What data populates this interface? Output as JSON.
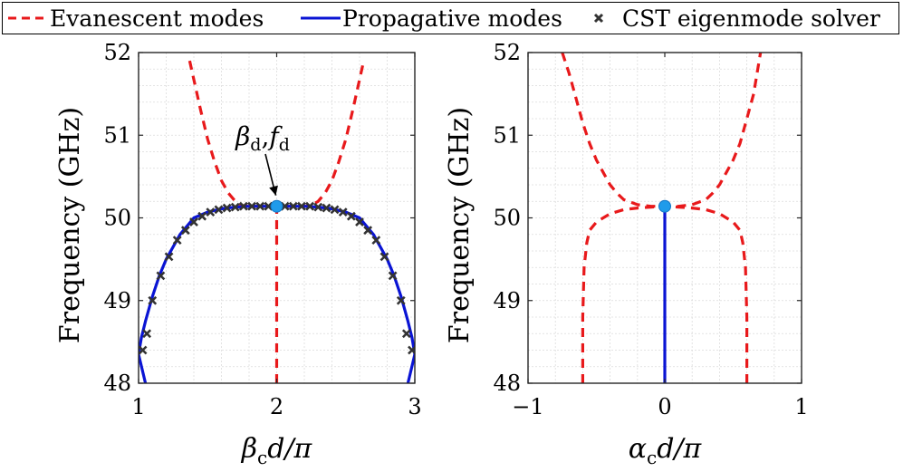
{
  "legend": {
    "items": [
      {
        "label": "Evanescent modes",
        "style": "dashed",
        "color": "#e8191b"
      },
      {
        "label": "Propagative modes",
        "style": "solid",
        "color": "#0a14d4"
      },
      {
        "label": "CST eigenmode solver",
        "style": "marker-x",
        "color": "#333333"
      }
    ],
    "placement": "top, full-width"
  },
  "chart_data": [
    {
      "type": "line",
      "xlim": [
        1,
        3
      ],
      "ylim": [
        48,
        52
      ],
      "xticks": [
        "1",
        "2",
        "3"
      ],
      "yticks": [
        "48",
        "49",
        "50",
        "51",
        "52"
      ],
      "xlabel_parts": {
        "main": "β",
        "sub": "c",
        "rest": "d/π"
      },
      "ylabel": "Frequency (GHz)",
      "grid": true,
      "annotation": {
        "main_a": "β",
        "sub_a": "d",
        "sep": ",",
        "main_b": "f",
        "sub_b": "d",
        "x": 2.0,
        "y": 50.14
      },
      "series": [
        {
          "name": "Evanescent modes",
          "style": "dashed",
          "color": "#e8191b",
          "x": [
            1.37,
            1.41,
            1.45,
            1.5,
            1.55,
            1.6,
            1.65,
            1.7,
            1.75,
            1.8,
            1.9,
            2.0,
            2.1,
            2.2,
            2.25,
            2.3,
            2.35,
            2.4,
            2.45,
            2.5,
            2.55,
            2.59,
            2.63
          ],
          "y": [
            51.9,
            51.6,
            51.3,
            50.95,
            50.68,
            50.45,
            50.3,
            50.2,
            50.15,
            50.14,
            50.14,
            50.14,
            50.14,
            50.14,
            50.15,
            50.2,
            50.3,
            50.45,
            50.68,
            50.95,
            51.3,
            51.6,
            51.9
          ]
        },
        {
          "name": "Evanescent modes (vertical)",
          "style": "dashed",
          "color": "#e8191b",
          "x": [
            2.0,
            2.0
          ],
          "y": [
            48.0,
            50.14
          ]
        },
        {
          "name": "Propagative modes",
          "style": "solid",
          "color": "#0a14d4",
          "x": [
            1.0,
            1.02,
            1.05,
            1.1,
            1.15,
            1.2,
            1.3,
            1.4,
            1.5,
            1.6,
            1.7,
            1.8,
            1.9,
            2.0,
            2.1,
            2.2,
            2.3,
            2.4,
            2.5,
            2.6,
            2.7,
            2.8,
            2.85,
            2.9,
            2.95,
            2.98,
            3.0
          ],
          "y": [
            48.35,
            48.55,
            48.75,
            49.05,
            49.3,
            49.5,
            49.8,
            50.0,
            50.07,
            50.11,
            50.13,
            50.14,
            50.14,
            50.14,
            50.14,
            50.14,
            50.13,
            50.11,
            50.07,
            50.0,
            49.8,
            49.5,
            49.3,
            49.05,
            48.75,
            48.55,
            48.35
          ]
        },
        {
          "name": "Propagative modes (edge)",
          "style": "solid",
          "color": "#0a14d4",
          "x": [
            1.0,
            1.05
          ],
          "y": [
            48.35,
            48.0
          ]
        },
        {
          "name": "Propagative modes (edge)",
          "style": "solid",
          "color": "#0a14d4",
          "x": [
            2.95,
            3.0
          ],
          "y": [
            48.0,
            48.35
          ]
        },
        {
          "name": "CST eigenmode solver",
          "style": "marker-x",
          "color": "#333333",
          "x": [
            1.03,
            1.06,
            1.1,
            1.16,
            1.22,
            1.28,
            1.34,
            1.4,
            1.46,
            1.52,
            1.58,
            1.64,
            1.7,
            1.76,
            1.82,
            1.88,
            1.94,
            2.0,
            2.06,
            2.12,
            2.18,
            2.24,
            2.3,
            2.36,
            2.42,
            2.48,
            2.54,
            2.6,
            2.66,
            2.72,
            2.78,
            2.84,
            2.9,
            2.94,
            2.98
          ],
          "y": [
            48.4,
            48.6,
            49.0,
            49.3,
            49.53,
            49.73,
            49.85,
            49.95,
            50.02,
            50.07,
            50.1,
            50.12,
            50.13,
            50.14,
            50.14,
            50.14,
            50.14,
            50.14,
            50.14,
            50.14,
            50.14,
            50.14,
            50.13,
            50.12,
            50.1,
            50.07,
            50.02,
            49.95,
            49.85,
            49.73,
            49.53,
            49.3,
            49.0,
            48.6,
            48.4
          ]
        },
        {
          "name": "design point",
          "style": "dot",
          "color": "#1f9bea",
          "x": [
            2.0
          ],
          "y": [
            50.14
          ]
        }
      ]
    },
    {
      "type": "line",
      "xlim": [
        -1,
        1
      ],
      "ylim": [
        48,
        52
      ],
      "xticks": [
        "−1",
        "0",
        "1"
      ],
      "yticks": [
        "48",
        "49",
        "50",
        "51",
        "52"
      ],
      "xlabel_parts": {
        "main": "α",
        "sub": "c",
        "rest": "d/π"
      },
      "ylabel": "Frequency (GHz)",
      "grid": true,
      "series": [
        {
          "name": "Evanescent modes (upper)",
          "style": "dashed",
          "color": "#e8191b",
          "x": [
            -0.75,
            -0.7,
            -0.65,
            -0.6,
            -0.55,
            -0.5,
            -0.45,
            -0.4,
            -0.35,
            -0.3,
            -0.2,
            -0.1,
            0.0,
            0.1,
            0.2,
            0.3,
            0.35,
            0.4,
            0.45,
            0.5,
            0.55,
            0.6,
            0.65,
            0.7
          ],
          "y": [
            52.0,
            51.75,
            51.45,
            51.15,
            50.9,
            50.7,
            50.55,
            50.4,
            50.3,
            50.22,
            50.16,
            50.14,
            50.14,
            50.14,
            50.16,
            50.22,
            50.3,
            50.4,
            50.55,
            50.7,
            50.9,
            51.2,
            51.5,
            52.0
          ]
        },
        {
          "name": "Evanescent modes (lower)",
          "style": "dashed",
          "color": "#e8191b",
          "x": [
            -0.6,
            -0.6,
            -0.59,
            -0.57,
            -0.55,
            -0.5,
            -0.45,
            -0.4,
            -0.3,
            -0.2,
            -0.1,
            0.0,
            0.1,
            0.2,
            0.3,
            0.4,
            0.45,
            0.5,
            0.55,
            0.57,
            0.59,
            0.6,
            0.6
          ],
          "y": [
            48.0,
            48.8,
            49.4,
            49.7,
            49.85,
            49.95,
            50.0,
            50.05,
            50.1,
            50.12,
            50.13,
            50.14,
            50.13,
            50.12,
            50.1,
            50.05,
            50.0,
            49.95,
            49.85,
            49.7,
            49.4,
            48.8,
            48.0
          ]
        },
        {
          "name": "Propagative modes",
          "style": "solid",
          "color": "#0a14d4",
          "x": [
            0.0,
            0.0
          ],
          "y": [
            48.0,
            50.14
          ]
        },
        {
          "name": "design point",
          "style": "dot",
          "color": "#1f9bea",
          "x": [
            0.0
          ],
          "y": [
            50.14
          ]
        }
      ]
    }
  ]
}
